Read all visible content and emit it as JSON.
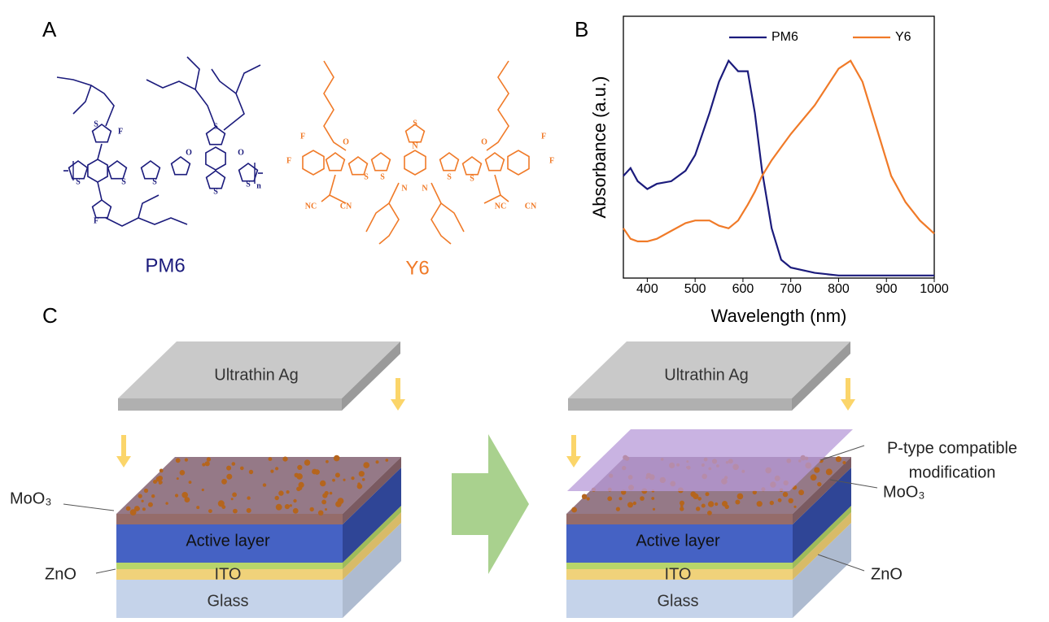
{
  "panels": {
    "a": "A",
    "b": "B",
    "c": "C"
  },
  "structures": {
    "pm6": {
      "name": "PM6",
      "atoms": [
        "F",
        "S",
        "S",
        "S",
        "S",
        "O",
        "O",
        "S",
        "S",
        "S",
        "F",
        "n"
      ]
    },
    "y6": {
      "name": "Y6",
      "atoms": [
        "F",
        "F",
        "O",
        "S",
        "N",
        "S",
        "S",
        "S",
        "S",
        "N",
        "N",
        "O",
        "F",
        "F",
        "NC",
        "CN",
        "NC",
        "CN"
      ]
    }
  },
  "chart_data": {
    "type": "line",
    "xlabel": "Wavelength (nm)",
    "ylabel": "Absorbance (a.u.)",
    "x": [
      350,
      365,
      380,
      400,
      420,
      450,
      480,
      500,
      530,
      550,
      570,
      590,
      610,
      625,
      640,
      660,
      680,
      700,
      750,
      800,
      825,
      850,
      880,
      910,
      940,
      970,
      1000
    ],
    "series": [
      {
        "name": "PM6",
        "color": "#1b1b7c",
        "values": [
          0.39,
          0.42,
          0.37,
          0.34,
          0.36,
          0.37,
          0.41,
          0.47,
          0.63,
          0.75,
          0.83,
          0.79,
          0.79,
          0.63,
          0.41,
          0.19,
          0.07,
          0.04,
          0.02,
          0.01,
          0.01,
          0.01,
          0.01,
          0.01,
          0.01,
          0.01,
          0.01
        ]
      },
      {
        "name": "Y6",
        "color": "#f07a28",
        "values": [
          0.19,
          0.15,
          0.14,
          0.14,
          0.15,
          0.18,
          0.21,
          0.22,
          0.22,
          0.2,
          0.19,
          0.22,
          0.28,
          0.33,
          0.39,
          0.45,
          0.5,
          0.55,
          0.66,
          0.8,
          0.83,
          0.75,
          0.57,
          0.39,
          0.29,
          0.22,
          0.17
        ]
      }
    ],
    "xlim": [
      350,
      1000
    ],
    "xticks": [
      400,
      500,
      600,
      700,
      800,
      900,
      1000
    ],
    "ylim": [
      0,
      1
    ],
    "legend": "top"
  },
  "devices": {
    "before": {
      "top": "Ultrathin Ag",
      "moo3": "MoO₃",
      "active": "Active layer",
      "zno": "ZnO",
      "ito": "ITO",
      "glass": "Glass"
    },
    "after": {
      "top": "Ultrathin Ag",
      "modification": [
        "P-type compatible",
        "modification"
      ],
      "moo3": "MoO₃",
      "active": "Active layer",
      "zno": "ZnO",
      "ito": "ITO",
      "glass": "Glass"
    }
  }
}
